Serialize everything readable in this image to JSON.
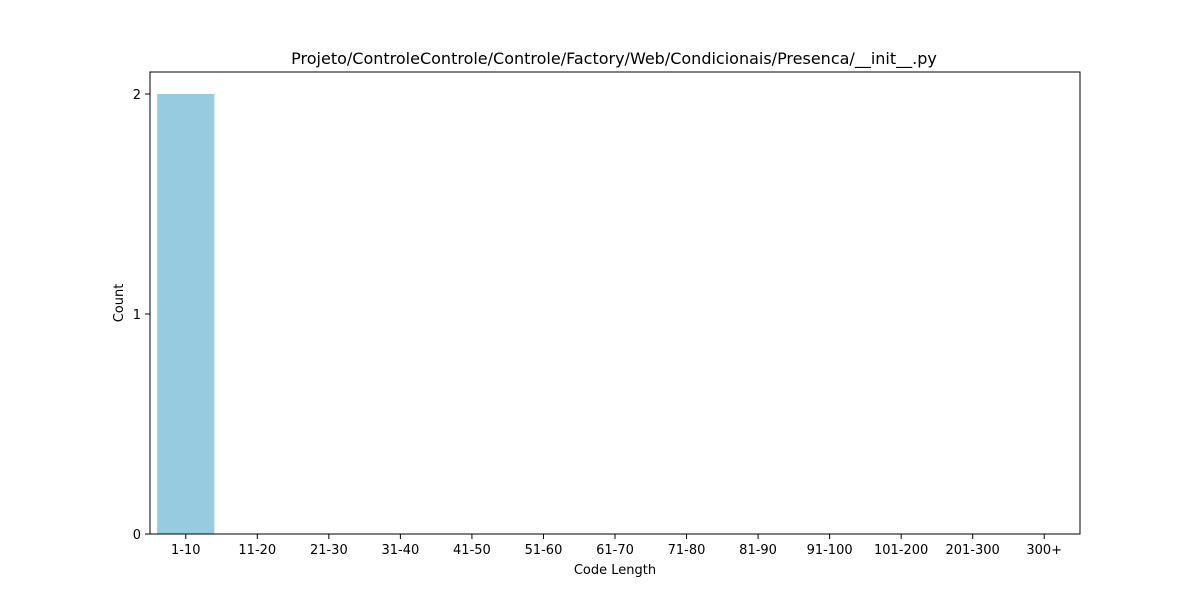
{
  "chart_data": {
    "type": "bar",
    "title": "Projeto/ControleControle/Controle/Factory/Web/Condicionais/Presenca/__init__.py",
    "xlabel": "Code Length",
    "ylabel": "Count",
    "categories": [
      "1-10",
      "11-20",
      "21-30",
      "31-40",
      "41-50",
      "51-60",
      "61-70",
      "71-80",
      "81-90",
      "91-100",
      "101-200",
      "201-300",
      "300+"
    ],
    "values": [
      2,
      0,
      0,
      0,
      0,
      0,
      0,
      0,
      0,
      0,
      0,
      0,
      0
    ],
    "yticks": [
      0,
      1,
      2
    ],
    "ylim": [
      0,
      2.1
    ],
    "grid": false,
    "legend": false,
    "bar_color": "#96cbe0",
    "axis_color": "#000000"
  }
}
